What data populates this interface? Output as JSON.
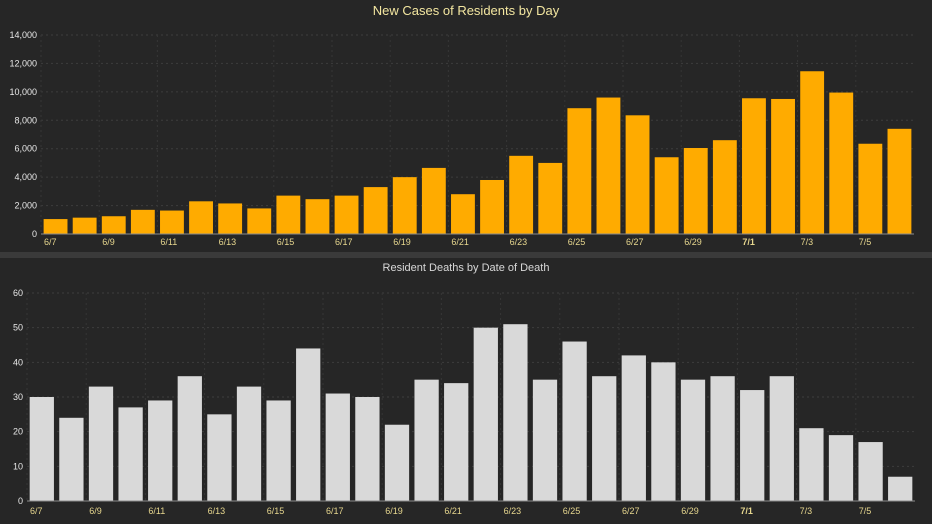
{
  "colors": {
    "cases_bar": "#ffab00",
    "deaths_bar": "#d9d9d9",
    "tick_text": "#e6d68e",
    "title_top": "#f3e6a0"
  },
  "chart_data": [
    {
      "type": "bar",
      "title": "New Cases of Residents by Day",
      "xlabel": "",
      "ylabel": "",
      "ylim": [
        0,
        14000
      ],
      "yticks": [
        "0",
        "2,000",
        "4,000",
        "6,000",
        "8,000",
        "10,000",
        "12,000",
        "14,000"
      ],
      "ytick_values": [
        0,
        2000,
        4000,
        6000,
        8000,
        10000,
        12000,
        14000
      ],
      "categories": [
        "6/7",
        "6/8",
        "6/9",
        "6/10",
        "6/11",
        "6/12",
        "6/13",
        "6/14",
        "6/15",
        "6/16",
        "6/17",
        "6/18",
        "6/19",
        "6/20",
        "6/21",
        "6/22",
        "6/23",
        "6/24",
        "6/25",
        "6/26",
        "6/27",
        "6/28",
        "6/29",
        "6/30",
        "7/1",
        "7/2",
        "7/3",
        "7/4",
        "7/5",
        "7/6"
      ],
      "tick_labels": [
        "6/7",
        "6/9",
        "6/11",
        "6/13",
        "6/15",
        "6/17",
        "6/19",
        "6/21",
        "6/23",
        "6/25",
        "6/27",
        "6/29",
        "7/1",
        "7/3",
        "7/5"
      ],
      "values": [
        1050,
        1150,
        1250,
        1700,
        1650,
        2300,
        2150,
        1800,
        2700,
        2450,
        2700,
        3300,
        4000,
        4650,
        2800,
        3800,
        5500,
        5000,
        8850,
        9600,
        8350,
        5400,
        6050,
        6600,
        9550,
        9500,
        11450,
        9950,
        6350,
        7400
      ],
      "grid": true
    },
    {
      "type": "bar",
      "title": "Resident Deaths by Date of Death",
      "xlabel": "",
      "ylabel": "",
      "ylim": [
        0,
        60
      ],
      "yticks": [
        "0",
        "10",
        "20",
        "30",
        "40",
        "50",
        "60"
      ],
      "ytick_values": [
        0,
        10,
        20,
        30,
        40,
        50,
        60
      ],
      "categories": [
        "6/7",
        "6/8",
        "6/9",
        "6/10",
        "6/11",
        "6/12",
        "6/13",
        "6/14",
        "6/15",
        "6/16",
        "6/17",
        "6/18",
        "6/19",
        "6/20",
        "6/21",
        "6/22",
        "6/23",
        "6/24",
        "6/25",
        "6/26",
        "6/27",
        "6/28",
        "6/29",
        "6/30",
        "7/1",
        "7/2",
        "7/3",
        "7/4",
        "7/5",
        "7/6"
      ],
      "tick_labels": [
        "6/7",
        "6/9",
        "6/11",
        "6/13",
        "6/15",
        "6/17",
        "6/19",
        "6/21",
        "6/23",
        "6/25",
        "6/27",
        "6/29",
        "7/1",
        "7/3",
        "7/5"
      ],
      "values": [
        30,
        24,
        33,
        27,
        29,
        36,
        25,
        33,
        29,
        44,
        31,
        30,
        22,
        35,
        34,
        50,
        51,
        35,
        46,
        36,
        42,
        40,
        35,
        36,
        32,
        36,
        21,
        19,
        17,
        7
      ],
      "grid": true
    }
  ]
}
